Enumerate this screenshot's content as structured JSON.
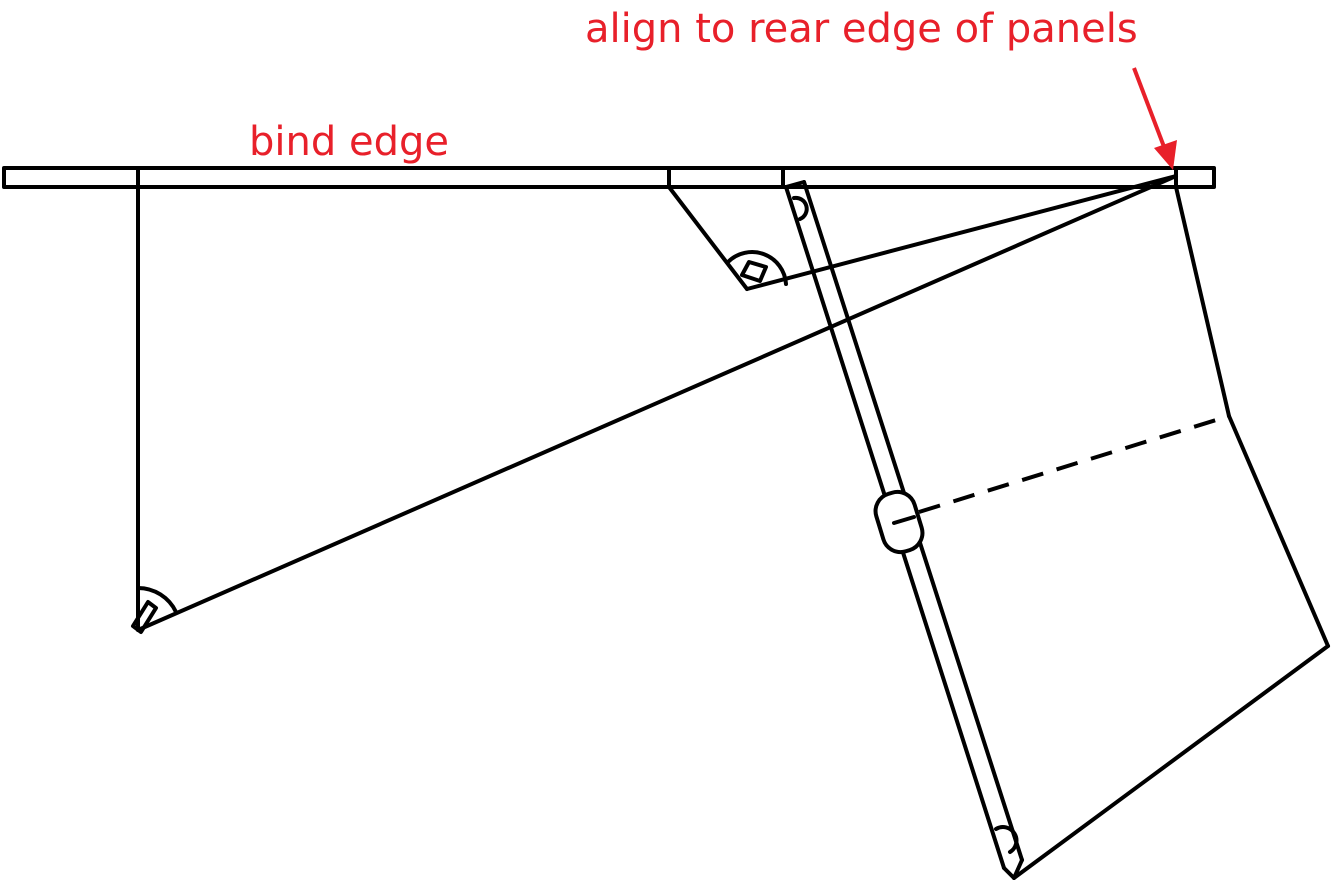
{
  "labels": {
    "bind_edge": "bind edge",
    "align_note": "align to rear edge of panels"
  },
  "colors": {
    "annotation": "#e8202a",
    "line": "#000000",
    "background": "#ffffff"
  }
}
